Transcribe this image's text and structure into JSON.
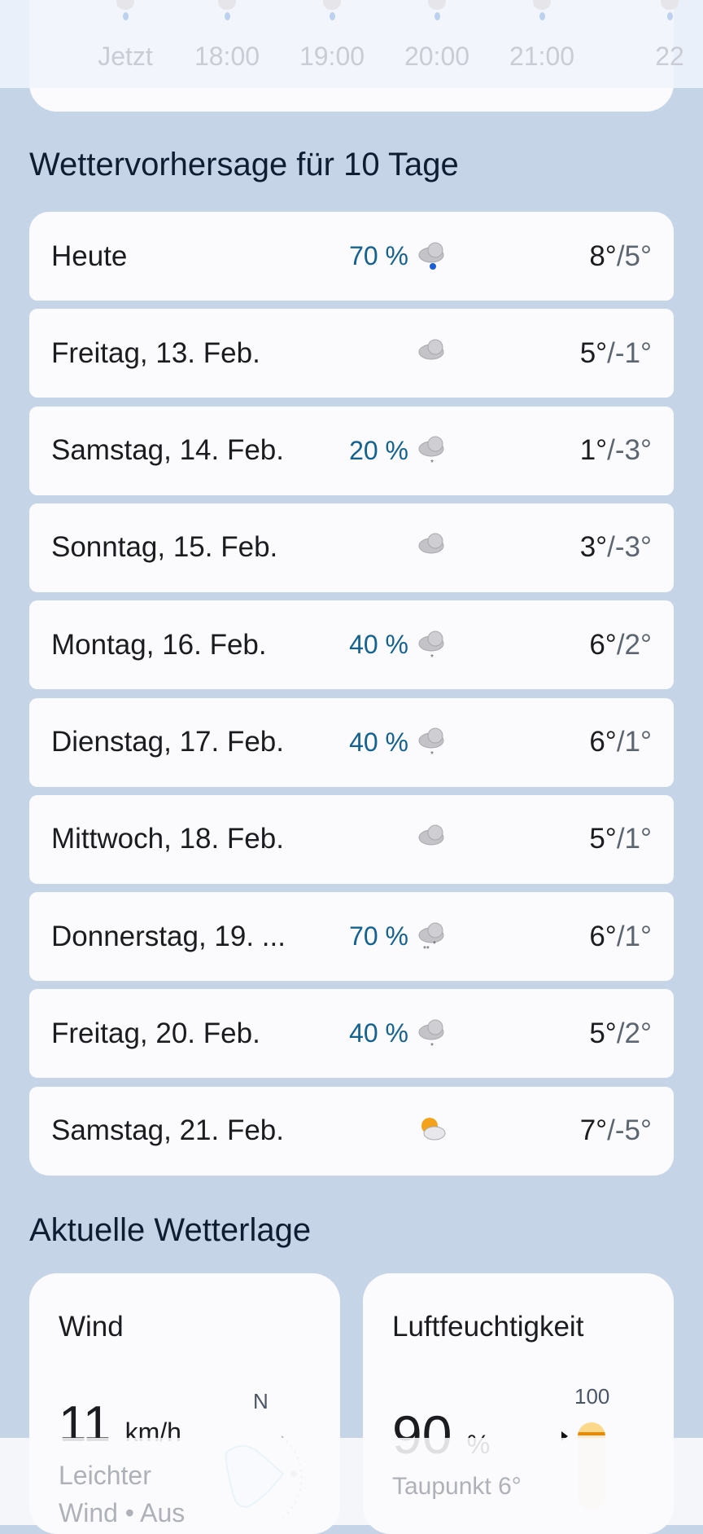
{
  "hourly": {
    "times": [
      "Jetzt",
      "18:00",
      "19:00",
      "20:00",
      "21:00",
      "22"
    ]
  },
  "forecast": {
    "heading": "Wettervorhersage für 10 Tage",
    "days": [
      {
        "day": "Heute",
        "precip": "70 %",
        "icon": "rain-icon",
        "high": "8°",
        "low": "/5°"
      },
      {
        "day": "Freitag, 13. Feb.",
        "precip": "",
        "icon": "cloud-icon",
        "high": "5°",
        "low": "/-1°"
      },
      {
        "day": "Samstag, 14. Feb.",
        "precip": "20 %",
        "icon": "snow-icon",
        "high": "1°",
        "low": "/-3°"
      },
      {
        "day": "Sonntag, 15. Feb.",
        "precip": "",
        "icon": "cloud-icon",
        "high": "3°",
        "low": "/-3°"
      },
      {
        "day": "Montag, 16. Feb.",
        "precip": "40 %",
        "icon": "snow-icon",
        "high": "6°",
        "low": "/2°"
      },
      {
        "day": "Dienstag, 17. Feb.",
        "precip": "40 %",
        "icon": "snow-icon",
        "high": "6°",
        "low": "/1°"
      },
      {
        "day": "Mittwoch, 18. Feb.",
        "precip": "",
        "icon": "cloud-icon",
        "high": "5°",
        "low": "/1°"
      },
      {
        "day": "Donnerstag, 19. ...",
        "precip": "70 %",
        "icon": "heavy-snow-icon",
        "high": "6°",
        "low": "/1°"
      },
      {
        "day": "Freitag, 20. Feb.",
        "precip": "40 %",
        "icon": "snow-icon",
        "high": "5°",
        "low": "/2°"
      },
      {
        "day": "Samstag, 21. Feb.",
        "precip": "",
        "icon": "partly-sunny-icon",
        "high": "7°",
        "low": "/-5°"
      }
    ]
  },
  "conditions": {
    "heading": "Aktuelle Wetterlage",
    "wind": {
      "title": "Wind",
      "value": "11",
      "unit": "km/h",
      "desc": "Leichter",
      "desc2": "Wind • Aus",
      "compass_north": "N"
    },
    "humidity": {
      "title": "Luftfeuchtigkeit",
      "value": "90",
      "unit": "%",
      "dewpoint": "Taupunkt 6°",
      "scale_max": "100",
      "level_percent": 90
    }
  },
  "colors": {
    "background": "#c5d4e6",
    "card": "#fbfbfe",
    "precip": "#13628f",
    "accent_humidity": "#f0a020"
  }
}
